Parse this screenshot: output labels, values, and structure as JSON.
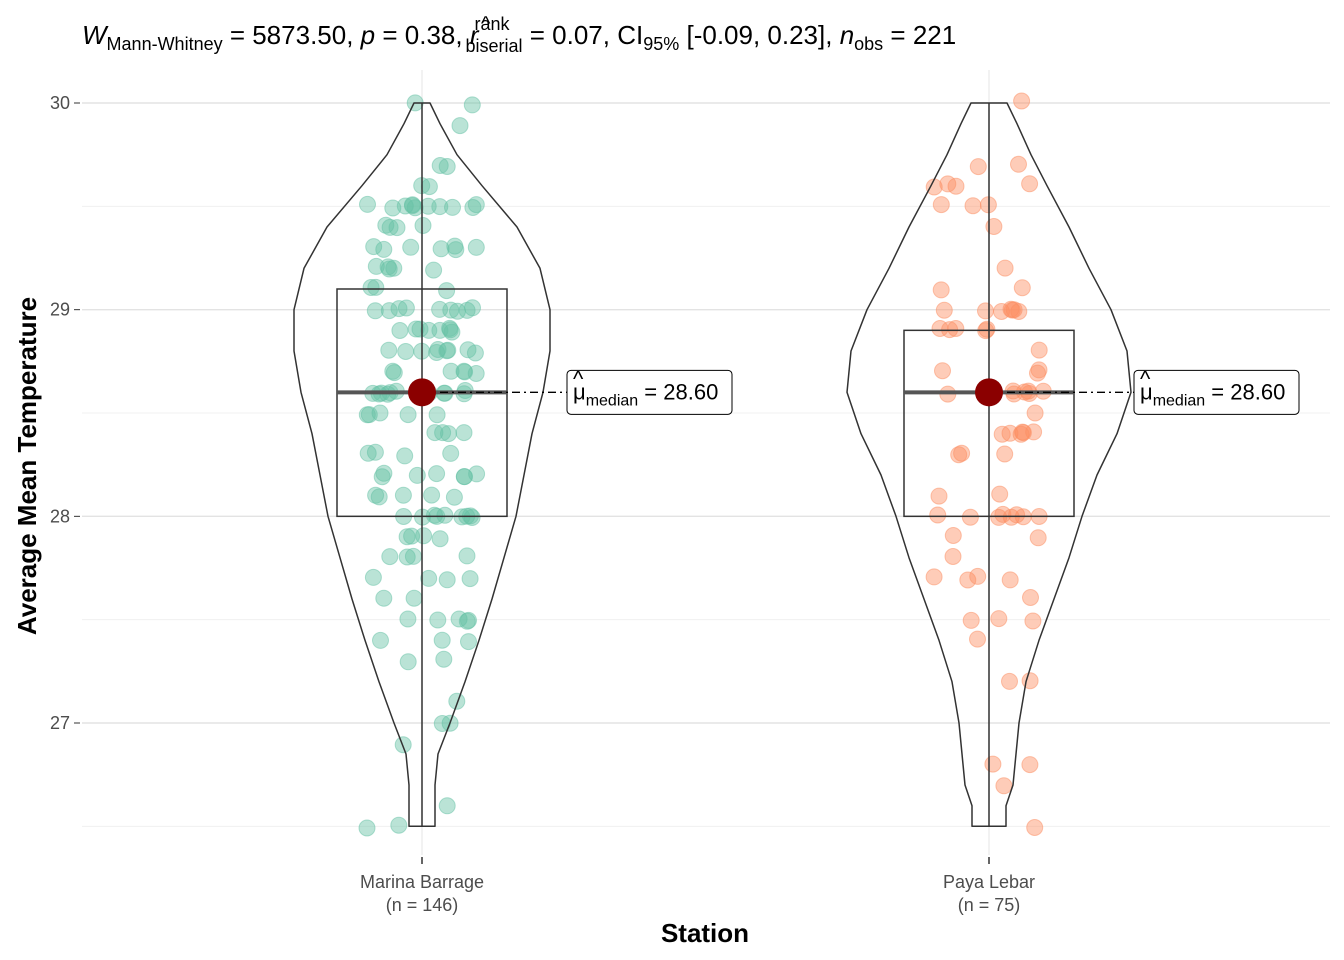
{
  "chart_data": {
    "type": "violin-box-scatter",
    "title_parts": {
      "stat_symbol": "W",
      "stat_sub": "Mann-Whitney",
      "stat_value": " = 5873.50, ",
      "p_symbol": "p",
      "p_value": " = 0.38, ",
      "r_symbol": "r",
      "r_hat": "^",
      "r_sup": "rank",
      "r_sub": "biserial",
      "r_value": " = 0.07, CI",
      "ci_sub": "95%",
      "ci_value": " [-0.09, 0.23], ",
      "n_symbol": "n",
      "n_sub": "obs",
      "n_value": " = 221"
    },
    "xlabel": "Station",
    "ylabel": "Average Mean Temperature",
    "ylim": [
      26.5,
      30.1
    ],
    "yticks": [
      "27",
      "28",
      "29",
      "30"
    ],
    "grid": true,
    "categories": [
      {
        "name": "Marina Barrage",
        "n_label": "(n = 146)",
        "color": "#66c2a5",
        "median": 28.6,
        "q1": 28.0,
        "q3": 29.1,
        "min": 26.5,
        "max": 30.0,
        "label_symbol": "μ",
        "label_sub": "median",
        "label_value": " = 28.60",
        "points": [
          26.5,
          26.5,
          26.6,
          26.9,
          27.0,
          27.0,
          27.1,
          27.3,
          27.3,
          27.4,
          27.4,
          27.4,
          27.5,
          27.5,
          27.5,
          27.5,
          27.5,
          27.6,
          27.6,
          27.7,
          27.7,
          27.7,
          27.7,
          27.8,
          27.8,
          27.8,
          27.9,
          27.9,
          27.9,
          27.9,
          28.0,
          28.0,
          28.0,
          28.0,
          28.0,
          28.0,
          28.0,
          28.0,
          28.1,
          28.1,
          28.1,
          28.1,
          28.1,
          28.2,
          28.2,
          28.2,
          28.2,
          28.2,
          28.2,
          28.2,
          28.3,
          28.3,
          28.3,
          28.4,
          28.4,
          28.4,
          28.4,
          28.5,
          28.5,
          28.5,
          28.5,
          28.5,
          28.6,
          28.6,
          28.6,
          28.6,
          28.6,
          28.6,
          28.6,
          28.6,
          28.6,
          28.6,
          28.6,
          28.7,
          28.7,
          28.7,
          28.7,
          28.7,
          28.7,
          28.8,
          28.8,
          28.8,
          28.8,
          28.8,
          28.8,
          28.8,
          28.8,
          28.8,
          28.9,
          28.9,
          28.9,
          28.9,
          28.9,
          28.9,
          28.9,
          28.9,
          29.0,
          29.0,
          29.0,
          29.0,
          29.0,
          29.0,
          29.0,
          29.0,
          29.1,
          29.1,
          29.1,
          29.2,
          29.2,
          29.2,
          29.2,
          29.2,
          29.3,
          29.3,
          29.3,
          29.3,
          29.3,
          29.3,
          29.4,
          29.4,
          29.4,
          29.4,
          29.5,
          29.5,
          29.5,
          29.5,
          29.5,
          29.5,
          29.5,
          29.5,
          29.5,
          29.5,
          29.5,
          29.6,
          29.6,
          29.7,
          29.7,
          29.9,
          30.0,
          30.0,
          29.0,
          28.3,
          28.6,
          28.0,
          27.8,
          29.3
        ]
      },
      {
        "name": "Paya Lebar",
        "n_label": "(n = 75)",
        "color": "#fc8d62",
        "median": 28.6,
        "q1": 28.0,
        "q3": 28.9,
        "min": 26.5,
        "max": 30.0,
        "label_symbol": "μ",
        "label_sub": "median",
        "label_value": " = 28.60",
        "points": [
          26.5,
          26.7,
          26.8,
          26.8,
          27.2,
          27.2,
          27.4,
          27.5,
          27.5,
          27.5,
          27.6,
          27.7,
          27.7,
          27.7,
          27.7,
          27.8,
          27.9,
          27.9,
          28.0,
          28.0,
          28.0,
          28.0,
          28.0,
          28.0,
          28.0,
          28.1,
          28.1,
          28.3,
          28.3,
          28.4,
          28.4,
          28.4,
          28.4,
          28.4,
          28.4,
          28.5,
          28.6,
          28.6,
          28.6,
          28.6,
          28.6,
          28.6,
          28.7,
          28.7,
          28.7,
          28.8,
          28.9,
          28.9,
          28.9,
          28.9,
          28.9,
          29.0,
          29.0,
          29.0,
          29.0,
          29.0,
          29.0,
          29.0,
          29.1,
          29.1,
          29.2,
          29.4,
          29.5,
          29.5,
          29.5,
          29.6,
          29.6,
          29.6,
          29.6,
          29.7,
          29.7,
          30.0,
          28.6,
          28.3,
          28.0
        ]
      }
    ]
  }
}
